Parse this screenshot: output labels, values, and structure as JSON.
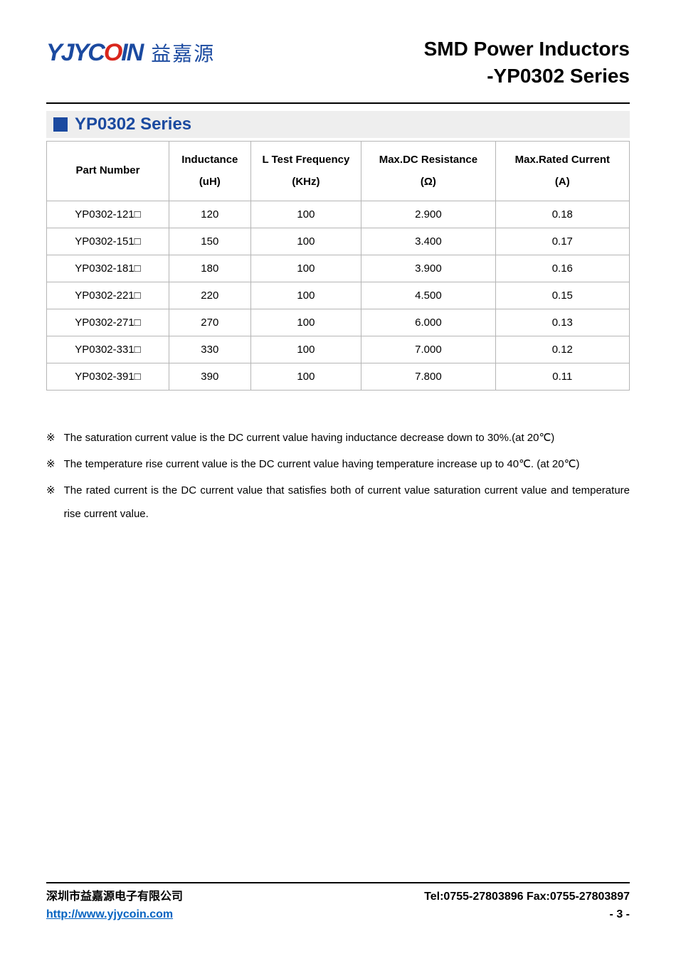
{
  "header": {
    "logo_english": "YJYCOIN",
    "logo_chinese": "益嘉源",
    "title_line1": "SMD Power Inductors",
    "title_line2": "-YP0302 Series"
  },
  "section": {
    "title": "YP0302 Series"
  },
  "table": {
    "columns": [
      {
        "label": "Part Number",
        "unit": ""
      },
      {
        "label": "Inductance",
        "unit": "(uH)"
      },
      {
        "label": "L Test Frequency",
        "unit": "(KHz)"
      },
      {
        "label": "Max.DC Resistance",
        "unit": "(Ω)"
      },
      {
        "label": "Max.Rated Current",
        "unit": "(A)"
      }
    ],
    "rows": [
      {
        "pn": "YP0302-121□",
        "ind": "120",
        "freq": "100",
        "dcr": "2.900",
        "cur": "0.18"
      },
      {
        "pn": "YP0302-151□",
        "ind": "150",
        "freq": "100",
        "dcr": "3.400",
        "cur": "0.17"
      },
      {
        "pn": "YP0302-181□",
        "ind": "180",
        "freq": "100",
        "dcr": "3.900",
        "cur": "0.16"
      },
      {
        "pn": "YP0302-221□",
        "ind": "220",
        "freq": "100",
        "dcr": "4.500",
        "cur": "0.15"
      },
      {
        "pn": "YP0302-271□",
        "ind": "270",
        "freq": "100",
        "dcr": "6.000",
        "cur": "0.13"
      },
      {
        "pn": "YP0302-331□",
        "ind": "330",
        "freq": "100",
        "dcr": "7.000",
        "cur": "0.12"
      },
      {
        "pn": "YP0302-391□",
        "ind": "390",
        "freq": "100",
        "dcr": "7.800",
        "cur": "0.11"
      }
    ]
  },
  "notes": {
    "marker": "※",
    "items": [
      "The saturation current value is the DC current value having inductance decrease down to 30%.(at 20℃)",
      "The temperature rise current value is the DC current value having temperature increase up to 40℃. (at 20℃)",
      "The rated current is the DC current value that satisfies both of current value saturation current value and temperature rise current value."
    ]
  },
  "footer": {
    "company": "深圳市益嘉源电子有限公司",
    "url": "http://www.yjycoin.com",
    "contact": "Tel:0755-27803896   Fax:0755-27803897",
    "page": "- 3 -"
  },
  "style": {
    "accent_color": "#1b4aa0",
    "section_bg": "#eeeeee",
    "border_color": "#b5b5b5",
    "link_color": "#0563c1",
    "logo_red": "#d9261c"
  }
}
